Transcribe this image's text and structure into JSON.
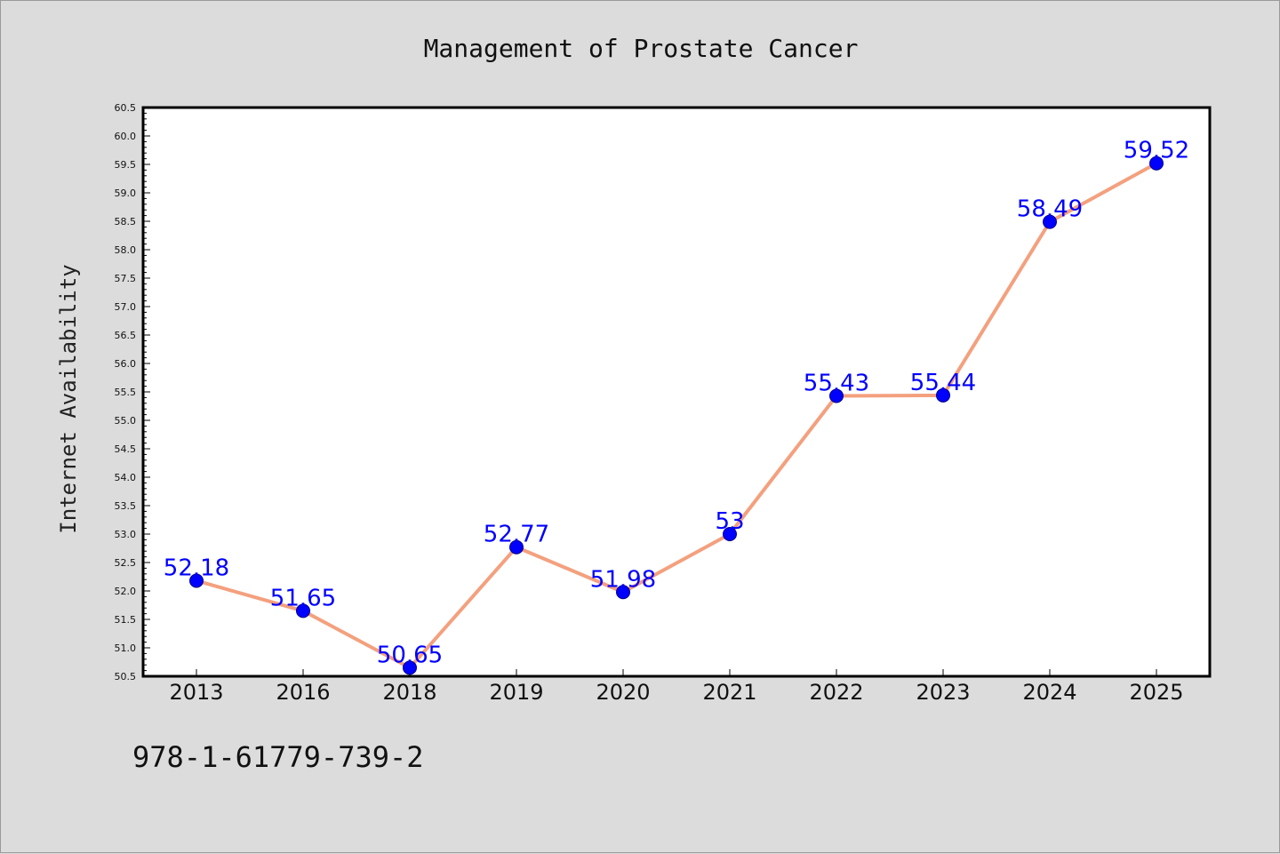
{
  "chart_data": {
    "type": "line",
    "title": "Management of Prostate Cancer",
    "xlabel": "",
    "ylabel": "Internet Availability",
    "categories": [
      "2013",
      "2016",
      "2018",
      "2019",
      "2020",
      "2021",
      "2022",
      "2023",
      "2024",
      "2025"
    ],
    "values": [
      52.18,
      51.65,
      50.65,
      52.77,
      51.98,
      53,
      55.43,
      55.44,
      58.49,
      59.52
    ],
    "point_labels": [
      "52.18",
      "51.65",
      "50.65",
      "52.77",
      "51.98",
      "53",
      "55.43",
      "55.44",
      "58.49",
      "59.52"
    ],
    "ylim": [
      50.5,
      60.5
    ],
    "ytick_labels": [
      "50.5",
      "51.0",
      "51.5",
      "52.0",
      "52.5",
      "53.0",
      "53.5",
      "54.0",
      "54.5",
      "55.0",
      "55.5",
      "56.0",
      "56.5",
      "57.0",
      "57.5",
      "58.0",
      "58.5",
      "59.0",
      "59.5",
      "60.0",
      "60.5"
    ],
    "grid": false,
    "line_color": "#f4a07e",
    "marker_color": "#0000ff",
    "label_color": "#0000ff"
  },
  "footer": {
    "code": "978-1-61779-739-2"
  }
}
